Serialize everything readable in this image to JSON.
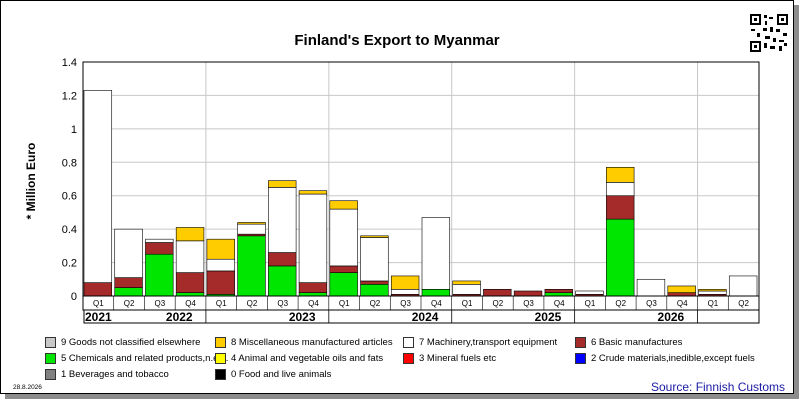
{
  "chart_data": {
    "type": "bar",
    "stacked": true,
    "title": "Finland's Export to Myanmar",
    "ylabel": "* Million Euro",
    "ylim": [
      0,
      1.4
    ],
    "yticks": [
      "0",
      "0.2",
      "0.4",
      "0.6",
      "0.8",
      "1",
      "1.2",
      "1.4"
    ],
    "grid": true,
    "legend_position": "bottom",
    "categories": [
      "Q1",
      "Q2",
      "Q3",
      "Q4",
      "Q1",
      "Q2",
      "Q3",
      "Q4",
      "Q1",
      "Q2",
      "Q3",
      "Q4",
      "Q1",
      "Q2",
      "Q3",
      "Q4",
      "Q1",
      "Q2",
      "Q3",
      "Q4",
      "Q1",
      "Q2"
    ],
    "years": [
      "2021",
      "2022",
      "2023",
      "2024",
      "2025",
      "2026"
    ],
    "series": [
      {
        "name": "0 Food and live animals",
        "color": "#000000",
        "values": [
          0,
          0,
          0,
          0,
          0,
          0,
          0,
          0,
          0,
          0,
          0,
          0,
          0,
          0,
          0,
          0,
          0,
          0,
          0,
          0,
          0,
          0
        ]
      },
      {
        "name": "1 Beverages and tobacco",
        "color": "#808080",
        "values": [
          0,
          0,
          0,
          0,
          0,
          0,
          0,
          0,
          0,
          0,
          0,
          0,
          0,
          0,
          0,
          0,
          0,
          0,
          0,
          0,
          0,
          0
        ]
      },
      {
        "name": "2 Crude materials,inedible,except fuels",
        "color": "#0000ff",
        "values": [
          0,
          0,
          0,
          0,
          0,
          0,
          0,
          0,
          0,
          0,
          0,
          0,
          0,
          0,
          0,
          0,
          0,
          0,
          0,
          0,
          0,
          0
        ]
      },
      {
        "name": "3 Mineral fuels etc",
        "color": "#ff0000",
        "values": [
          0,
          0,
          0,
          0,
          0,
          0,
          0,
          0,
          0,
          0,
          0,
          0,
          0,
          0,
          0,
          0,
          0,
          0,
          0,
          0,
          0,
          0
        ]
      },
      {
        "name": "5 Chemicals and related products,n.e.s.",
        "color": "#00e600",
        "values": [
          0,
          0.05,
          0.25,
          0.02,
          0.01,
          0.36,
          0.18,
          0.02,
          0.14,
          0.07,
          0,
          0.04,
          0,
          0,
          0,
          0.02,
          0,
          0.46,
          0,
          0,
          0,
          0
        ]
      },
      {
        "name": "6 Basic manufactures",
        "color": "#a52a2a",
        "values": [
          0.08,
          0.06,
          0.07,
          0.12,
          0.14,
          0.01,
          0.08,
          0.06,
          0.04,
          0.02,
          0.01,
          0,
          0.01,
          0.04,
          0.03,
          0.02,
          0.01,
          0.14,
          0,
          0.02,
          0.01,
          0
        ]
      },
      {
        "name": "7 Machinery,transport equipment",
        "color": "#ffffff",
        "values": [
          1.15,
          0.29,
          0.02,
          0.19,
          0.07,
          0.06,
          0.39,
          0.53,
          0.34,
          0.26,
          0.03,
          0.43,
          0.06,
          0,
          0,
          0,
          0.02,
          0.08,
          0.1,
          0,
          0.02,
          0.12
        ]
      },
      {
        "name": "4 Animal and vegetable oils and fats",
        "color": "#ffff00",
        "values": [
          0,
          0,
          0,
          0,
          0,
          0,
          0,
          0,
          0,
          0,
          0,
          0,
          0,
          0,
          0,
          0,
          0,
          0,
          0,
          0,
          0,
          0
        ]
      },
      {
        "name": "8 Miscellaneous manufactured articles",
        "color": "#ffcc00",
        "values": [
          0,
          0,
          0,
          0.08,
          0.12,
          0.01,
          0.04,
          0.02,
          0.05,
          0.01,
          0.08,
          0,
          0.02,
          0,
          0,
          0,
          0,
          0.09,
          0,
          0.04,
          0.01,
          0
        ]
      },
      {
        "name": "9 Goods not classified elsewhere",
        "color": "#c8c8c8",
        "values": [
          0,
          0,
          0,
          0,
          0,
          0,
          0,
          0,
          0,
          0,
          0,
          0,
          0,
          0,
          0,
          0,
          0,
          0,
          0,
          0,
          0,
          0
        ]
      }
    ]
  },
  "legend": [
    {
      "label": "9 Goods not classified elsewhere",
      "color": "#c8c8c8"
    },
    {
      "label": "8 Miscellaneous manufactured articles",
      "color": "#ffcc00"
    },
    {
      "label": "7 Machinery,transport equipment",
      "color": "#ffffff"
    },
    {
      "label": "6 Basic manufactures",
      "color": "#a52a2a"
    },
    {
      "label": "5 Chemicals and related products,n.e.s.",
      "color": "#00e600"
    },
    {
      "label": "4 Animal and vegetable oils and fats",
      "color": "#ffff00"
    },
    {
      "label": "3 Mineral fuels etc",
      "color": "#ff0000"
    },
    {
      "label": "2 Crude materials,inedible,except fuels",
      "color": "#0000ff"
    },
    {
      "label": "1 Beverages and tobacco",
      "color": "#808080"
    },
    {
      "label": "0 Food and live animals",
      "color": "#000000"
    }
  ],
  "footer": {
    "date": "28.8.2026",
    "source": "Source: Finnish Customs"
  },
  "icons": {
    "qr": "qr-code-icon"
  }
}
